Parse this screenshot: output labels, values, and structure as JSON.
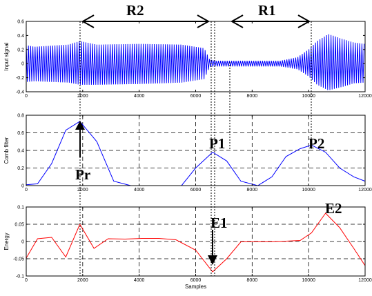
{
  "chart_data": [
    {
      "type": "line",
      "ylabel": "Input signal",
      "xlim": [
        0,
        12000
      ],
      "ylim": [
        -0.4,
        0.6
      ],
      "xticks": [
        0,
        2000,
        4000,
        6000,
        8000,
        10000,
        12000
      ],
      "yticks": [
        -0.4,
        -0.2,
        0,
        0.2,
        0.4,
        0.6
      ],
      "ytick_labels": [
        "-0.4",
        "-0.2",
        "0",
        "0.2",
        "0.4",
        "0.6"
      ],
      "xtick_labels": [
        "0",
        "2000",
        "4000",
        "6000",
        "8000",
        "10000",
        "12000"
      ],
      "grid": false,
      "color": "#0000ff",
      "envelope": {
        "x": [
          0,
          300,
          1500,
          1900,
          2500,
          4000,
          5500,
          6300,
          6500,
          6700,
          7500,
          9000,
          9600,
          10000,
          10300,
          10700,
          11200,
          11600,
          12000
        ],
        "upper": [
          0.26,
          0.24,
          0.27,
          0.32,
          0.27,
          0.28,
          0.27,
          0.22,
          0.06,
          0.04,
          0.04,
          0.04,
          0.09,
          0.2,
          0.32,
          0.42,
          0.35,
          0.3,
          0.28
        ],
        "lower": [
          -0.26,
          -0.25,
          -0.27,
          -0.3,
          -0.3,
          -0.29,
          -0.27,
          -0.22,
          -0.05,
          -0.04,
          -0.04,
          -0.04,
          -0.08,
          -0.18,
          -0.3,
          -0.38,
          -0.33,
          -0.28,
          -0.27
        ]
      }
    },
    {
      "type": "line",
      "ylabel": "Comb filter",
      "xlim": [
        0,
        12000
      ],
      "ylim": [
        0,
        0.8
      ],
      "xticks": [
        0,
        2000,
        4000,
        6000,
        8000,
        10000,
        12000
      ],
      "yticks": [
        0,
        0.2,
        0.4,
        0.6,
        0.8
      ],
      "ytick_labels": [
        "0",
        "0.2",
        "0.4",
        "0.6",
        "0.8"
      ],
      "xtick_labels": [
        "0",
        "2000",
        "4000",
        "6000",
        "8000",
        "10000",
        "12000"
      ],
      "grid": true,
      "color": "#0000ff",
      "x": [
        0,
        400,
        900,
        1400,
        1900,
        2500,
        3100,
        3700,
        4300,
        4900,
        5500,
        6000,
        6600,
        7100,
        7600,
        8200,
        8700,
        9200,
        9700,
        10100,
        10600,
        11100,
        11600,
        12000
      ],
      "y": [
        0.01,
        0.02,
        0.25,
        0.63,
        0.73,
        0.5,
        0.05,
        0.0,
        0.0,
        0.0,
        0.0,
        0.2,
        0.38,
        0.28,
        0.05,
        0.0,
        0.1,
        0.33,
        0.42,
        0.46,
        0.38,
        0.2,
        0.1,
        0.05
      ]
    },
    {
      "type": "line",
      "ylabel": "Energy",
      "xlabel": "Samples",
      "xlim": [
        0,
        12000
      ],
      "ylim": [
        -0.1,
        0.1
      ],
      "xticks": [
        0,
        2000,
        4000,
        6000,
        8000,
        10000,
        12000
      ],
      "yticks": [
        -0.1,
        -0.05,
        0,
        0.05,
        0.1
      ],
      "ytick_labels": [
        "-0.1",
        "-0.05",
        "0",
        "0.05",
        "0.1"
      ],
      "xtick_labels": [
        "0",
        "2000",
        "4000",
        "6000",
        "8000",
        "10000",
        "12000"
      ],
      "grid": true,
      "color": "#ff0000",
      "x": [
        0,
        400,
        900,
        1400,
        1900,
        2400,
        2900,
        3500,
        4100,
        4700,
        5300,
        6000,
        6600,
        7100,
        7600,
        8200,
        8700,
        9200,
        9700,
        10100,
        10600,
        11100,
        11600,
        12000
      ],
      "y": [
        -0.048,
        0.008,
        0.012,
        -0.045,
        0.05,
        -0.02,
        0.008,
        0.007,
        0.009,
        0.009,
        0.005,
        -0.025,
        -0.088,
        -0.05,
        -0.001,
        -0.001,
        -0.001,
        0.001,
        0.003,
        0.025,
        0.082,
        0.04,
        -0.02,
        -0.07
      ]
    }
  ],
  "annotations": {
    "r2": "R2",
    "r1": "R1",
    "pr": "Pr",
    "p1": "P1",
    "p2": "P2",
    "e1": "E1",
    "e2": "E2"
  },
  "colors": {
    "signal": "#0000ff",
    "energy": "#ff0000",
    "axes": "#000000"
  }
}
